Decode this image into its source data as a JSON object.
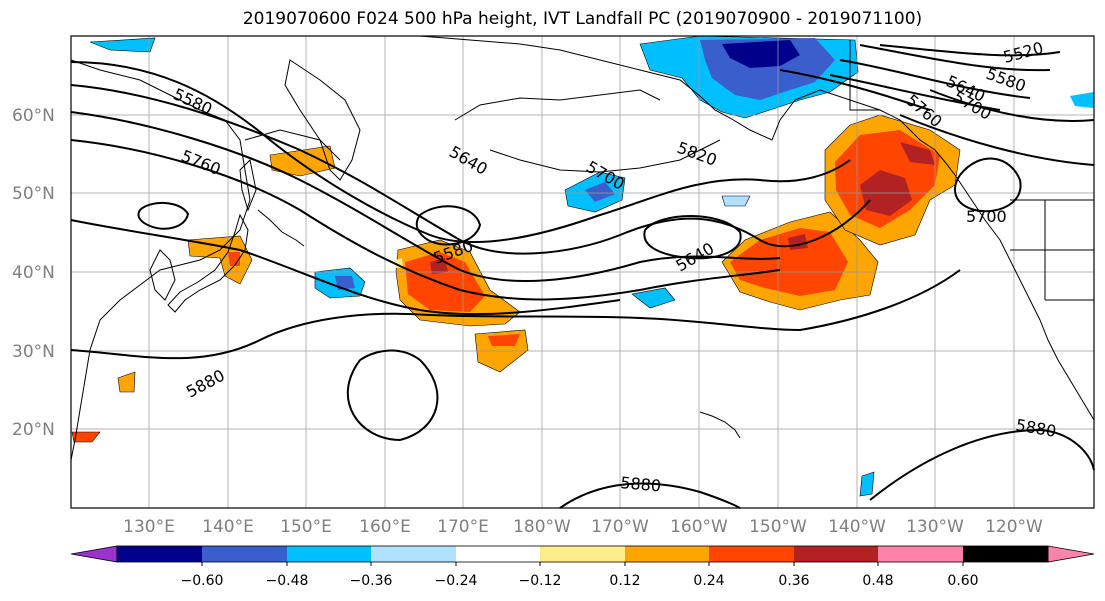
{
  "title": "2019070600 F024 500 hPa height, IVT Landfall PC (2019070900 - 2019071100)",
  "lat_labels": [
    "60°N",
    "50°N",
    "40°N",
    "30°N",
    "20°N"
  ],
  "lon_labels": [
    "130°E",
    "140°E",
    "150°E",
    "160°E",
    "170°E",
    "180°W",
    "170°W",
    "160°W",
    "150°W",
    "140°W",
    "130°W",
    "120°W"
  ],
  "contour_labels": [
    "5520",
    "5580",
    "5640",
    "5700",
    "5760",
    "5580",
    "5760",
    "5640",
    "5820",
    "5700",
    "5580",
    "5640",
    "5880",
    "5700",
    "5880",
    "5880"
  ],
  "colorbar": {
    "ticks": [
      "−0.60",
      "−0.48",
      "−0.36",
      "−0.24",
      "−0.12",
      "0.12",
      "0.24",
      "0.36",
      "0.48",
      "0.60"
    ],
    "colors": [
      "#9a32cd",
      "#00008b",
      "#3a5fcd",
      "#00bfff",
      "#b0e2ff",
      "#ffffff",
      "#ffec8b",
      "#ffa500",
      "#ff4500",
      "#b22222",
      "#ff82ab"
    ]
  }
}
